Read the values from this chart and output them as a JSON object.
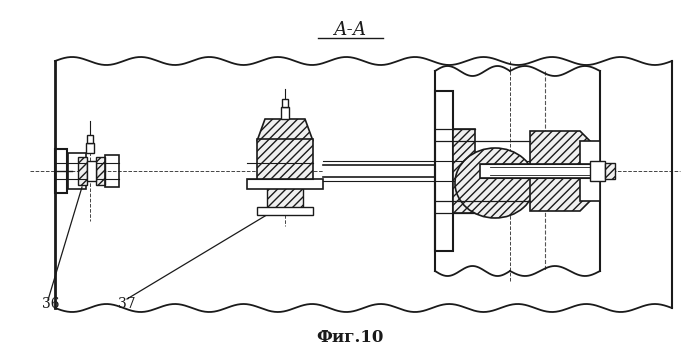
{
  "title_text": "А-А",
  "caption_text": "Фиг.10",
  "label_36": "36",
  "label_37": "37",
  "bg_color": "#ffffff",
  "line_color": "#1a1a1a",
  "fig_width": 7.0,
  "fig_height": 3.56,
  "dpi": 100
}
